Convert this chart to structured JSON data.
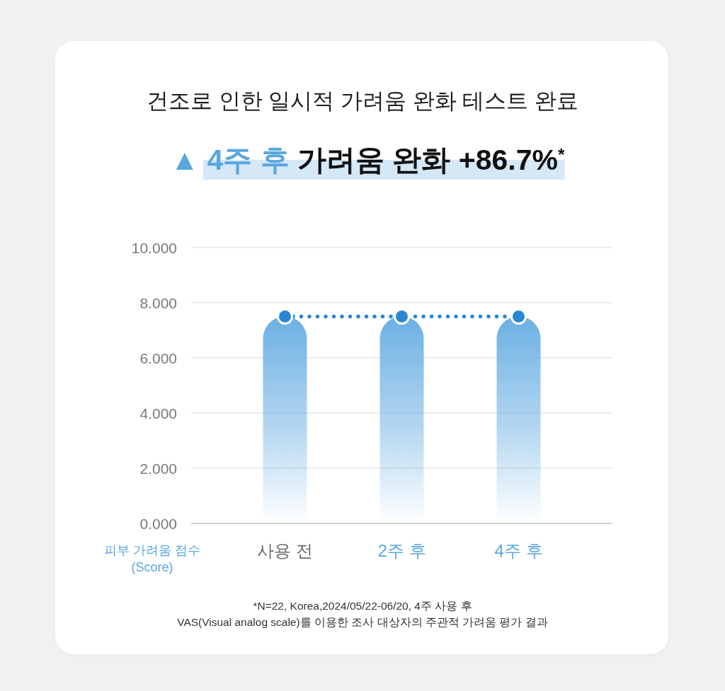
{
  "chart_data": {
    "type": "bar",
    "title": "건조로 인한 일시적 가려움 완화 테스트 완료",
    "subtitle": "▲ 4주 후 가려움 완화 +86.7%$^{*}$",
    "ylabel": "피부 가려움 점수\n(Score)",
    "annotations": [
      "*N=22, Korea,2024/05/22-06/20, 4주 사용 후",
      "VAS(Visual analog scale)를 이용한 조사 대상자의 주관적 가려움 평가 결과"
    ],
    "categories": [
      "사용 전",
      "2주 후",
      "4주 후"
    ],
    "series": [
      {
        "color": "#6cb0e3",
        "values": [
          7.5,
          7.5,
          7.5
        ]
      },
      {
        "type": "line",
        "color": "#2b86d5",
        "values": [
          7.5,
          7.5,
          7.5
        ]
      }
    ],
    "ylim": [
      0,
      10
    ],
    "yticks": [
      {
        "value": 0,
        "label": "0.000"
      },
      {
        "value": 2,
        "label": "2.000"
      },
      {
        "value": 4,
        "label": "4.000"
      },
      {
        "value": 6,
        "label": "6.000"
      },
      {
        "value": 8,
        "label": "8.000"
      },
      {
        "value": 10,
        "label": "10.000"
      }
    ],
    "grid": "y",
    "marker": "circle",
    "line_style": "dotted"
  }
}
